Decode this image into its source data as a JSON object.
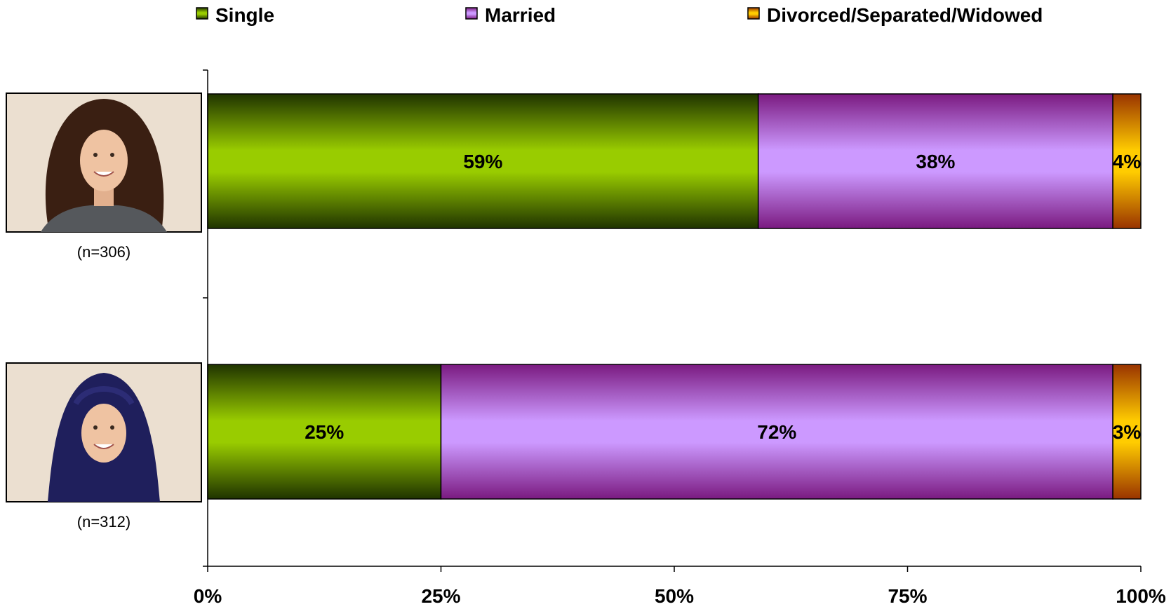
{
  "chart_data": {
    "type": "bar",
    "orientation": "horizontal",
    "stacked": true,
    "categories": [
      "(n=306)",
      "(n=312)"
    ],
    "category_images": [
      "woman-long-hair-photo",
      "woman-hijab-photo"
    ],
    "series": [
      {
        "name": "Single",
        "values": [
          59,
          25
        ],
        "labels": [
          "59%",
          "25%"
        ],
        "color": "#99cc00",
        "dark": "#1f3300"
      },
      {
        "name": "Married",
        "values": [
          38,
          72
        ],
        "labels": [
          "38%",
          "72%"
        ],
        "color": "#cc99ff",
        "dark": "#7a1a80"
      },
      {
        "name": "Divorced/Separated/Widowed",
        "values": [
          4,
          3
        ],
        "labels": [
          "4%",
          "3%"
        ],
        "color": "#ffcc00",
        "dark": "#993300"
      }
    ],
    "xticks": [
      "0%",
      "25%",
      "50%",
      "75%",
      "100%"
    ],
    "xlim": [
      0,
      100
    ],
    "legend_position": "top",
    "grid": false
  }
}
